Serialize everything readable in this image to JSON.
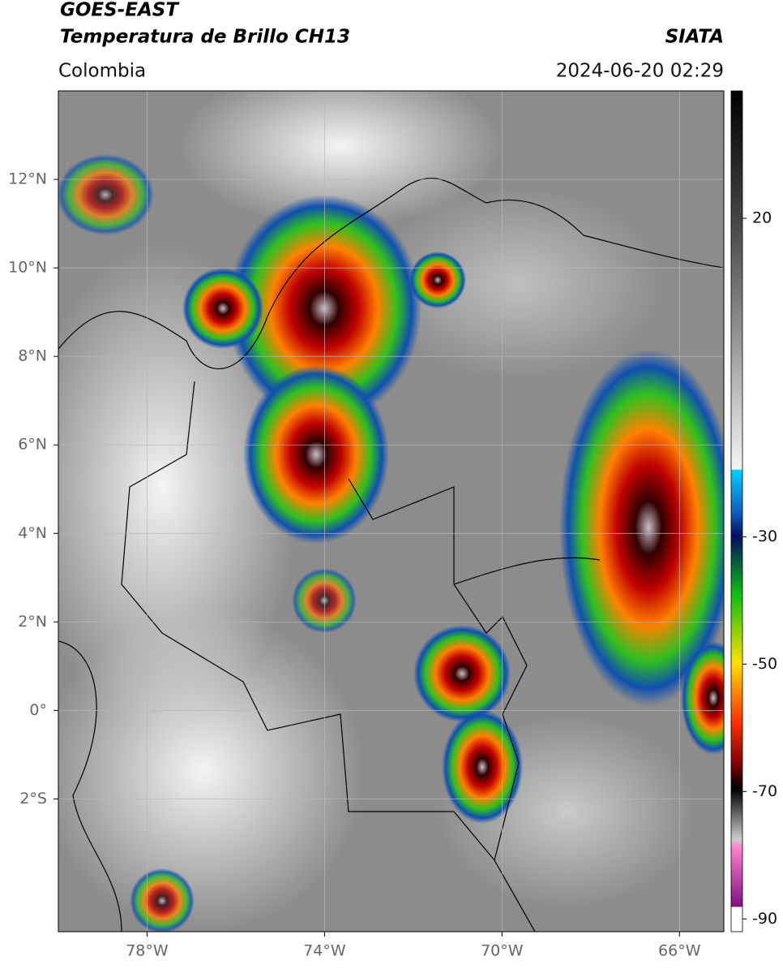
{
  "header": {
    "source": "GOES-EAST",
    "product": "Temperatura de Brillo CH13",
    "agency": "SIATA",
    "region": "Colombia",
    "datetime": "2024-06-20 02:29"
  },
  "map": {
    "xlim": [
      -80,
      -65
    ],
    "ylim": [
      -5,
      14
    ],
    "grid": true,
    "xticks": [
      {
        "value": -78,
        "label": "78°W"
      },
      {
        "value": -74,
        "label": "74°W"
      },
      {
        "value": -70,
        "label": "70°W"
      },
      {
        "value": -66,
        "label": "66°W"
      }
    ],
    "yticks": [
      {
        "value": 12,
        "label": "12°N"
      },
      {
        "value": 10,
        "label": "10°N"
      },
      {
        "value": 8,
        "label": "8°N"
      },
      {
        "value": 6,
        "label": "6°N"
      },
      {
        "value": 4,
        "label": "4°N"
      },
      {
        "value": 2,
        "label": "2°N"
      },
      {
        "value": 0,
        "label": "0°"
      },
      {
        "value": -2,
        "label": "2°S"
      }
    ]
  },
  "colorbar": {
    "lim": [
      -92,
      40
    ],
    "ticks": [
      20,
      -30,
      -50,
      -70,
      -90
    ]
  }
}
